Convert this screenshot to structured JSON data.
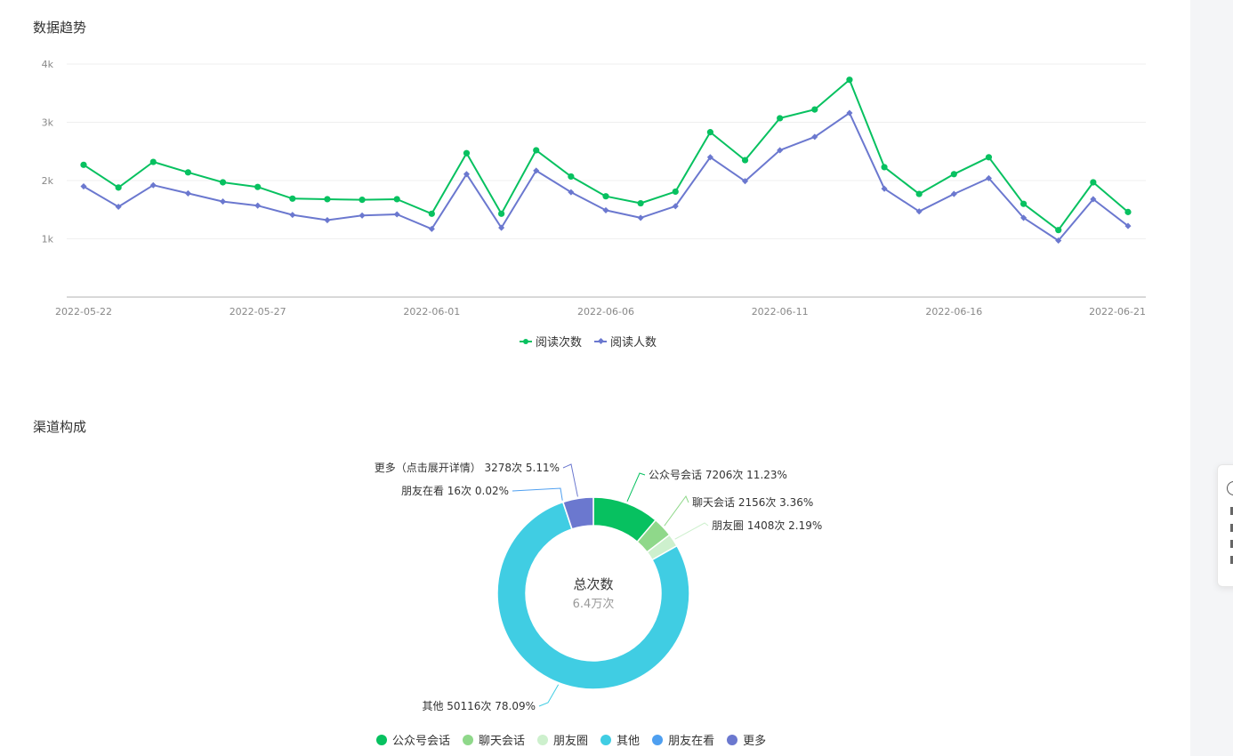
{
  "sections": {
    "trend_title": "数据趋势",
    "channel_title": "渠道构成"
  },
  "colors": {
    "reads": "#07c160",
    "readers": "#6b78cf",
    "grid": "#efefef",
    "axis": "#cccccc",
    "tick_text": "#888888"
  },
  "chart_data": [
    {
      "type": "line",
      "x": [
        "2022-05-22",
        "2022-05-23",
        "2022-05-24",
        "2022-05-25",
        "2022-05-26",
        "2022-05-27",
        "2022-05-28",
        "2022-05-29",
        "2022-05-30",
        "2022-05-31",
        "2022-06-01",
        "2022-06-02",
        "2022-06-03",
        "2022-06-04",
        "2022-06-05",
        "2022-06-06",
        "2022-06-07",
        "2022-06-08",
        "2022-06-09",
        "2022-06-10",
        "2022-06-11",
        "2022-06-12",
        "2022-06-13",
        "2022-06-14",
        "2022-06-15",
        "2022-06-16",
        "2022-06-17",
        "2022-06-18",
        "2022-06-19",
        "2022-06-20",
        "2022-06-21"
      ],
      "x_tick_labels": [
        "2022-05-22",
        "2022-05-27",
        "2022-06-01",
        "2022-06-06",
        "2022-06-11",
        "2022-06-16",
        "2022-06-21"
      ],
      "y_tick_labels": [
        "1k",
        "2k",
        "3k",
        "4k"
      ],
      "ylim": [
        0,
        4000
      ],
      "grid": true,
      "legend_position": "bottom",
      "series": [
        {
          "name": "阅读次数",
          "marker": "circle",
          "color": "#07c160",
          "values": [
            2270,
            1880,
            2320,
            2140,
            1970,
            1890,
            1690,
            1680,
            1670,
            1680,
            1430,
            2470,
            1430,
            2520,
            2070,
            1730,
            1610,
            1810,
            2830,
            2350,
            3070,
            3220,
            3730,
            2230,
            1770,
            2110,
            2400,
            1600,
            1150,
            1970,
            1460
          ]
        },
        {
          "name": "阅读人数",
          "marker": "diamond",
          "color": "#6b78cf",
          "values": [
            1900,
            1550,
            1920,
            1780,
            1640,
            1570,
            1410,
            1320,
            1400,
            1420,
            1170,
            2110,
            1190,
            2170,
            1800,
            1490,
            1360,
            1560,
            2400,
            1990,
            2520,
            2750,
            3160,
            1860,
            1470,
            1770,
            2040,
            1360,
            970,
            1680,
            1220
          ]
        }
      ]
    },
    {
      "type": "pie",
      "subtype": "donut",
      "center_title": "总次数",
      "center_value": "6.4万次",
      "legend_position": "bottom",
      "slices": [
        {
          "name": "公众号会话",
          "count": "7206次",
          "percent": 11.23,
          "percent_label": "11.23%",
          "color": "#07c160",
          "label": "公众号会话 7206次 11.23%"
        },
        {
          "name": "聊天会话",
          "count": "2156次",
          "percent": 3.36,
          "percent_label": "3.36%",
          "color": "#8fd88a",
          "label": "聊天会话 2156次 3.36%"
        },
        {
          "name": "朋友圈",
          "count": "1408次",
          "percent": 2.19,
          "percent_label": "2.19%",
          "color": "#cdf0cd",
          "label": "朋友圈 1408次 2.19%"
        },
        {
          "name": "其他",
          "count": "50116次",
          "percent": 78.09,
          "percent_label": "78.09%",
          "color": "#40cde3",
          "label": "其他 50116次 78.09%"
        },
        {
          "name": "朋友在看",
          "count": "16次",
          "percent": 0.02,
          "percent_label": "0.02%",
          "color": "#4e9ff0",
          "label": "朋友在看 16次 0.02%"
        },
        {
          "name": "更多",
          "count": "3278次",
          "percent": 5.11,
          "percent_label": "5.11%",
          "color": "#6b78cf",
          "label": "更多（点击展开详情） 3278次 5.11%"
        }
      ]
    }
  ]
}
